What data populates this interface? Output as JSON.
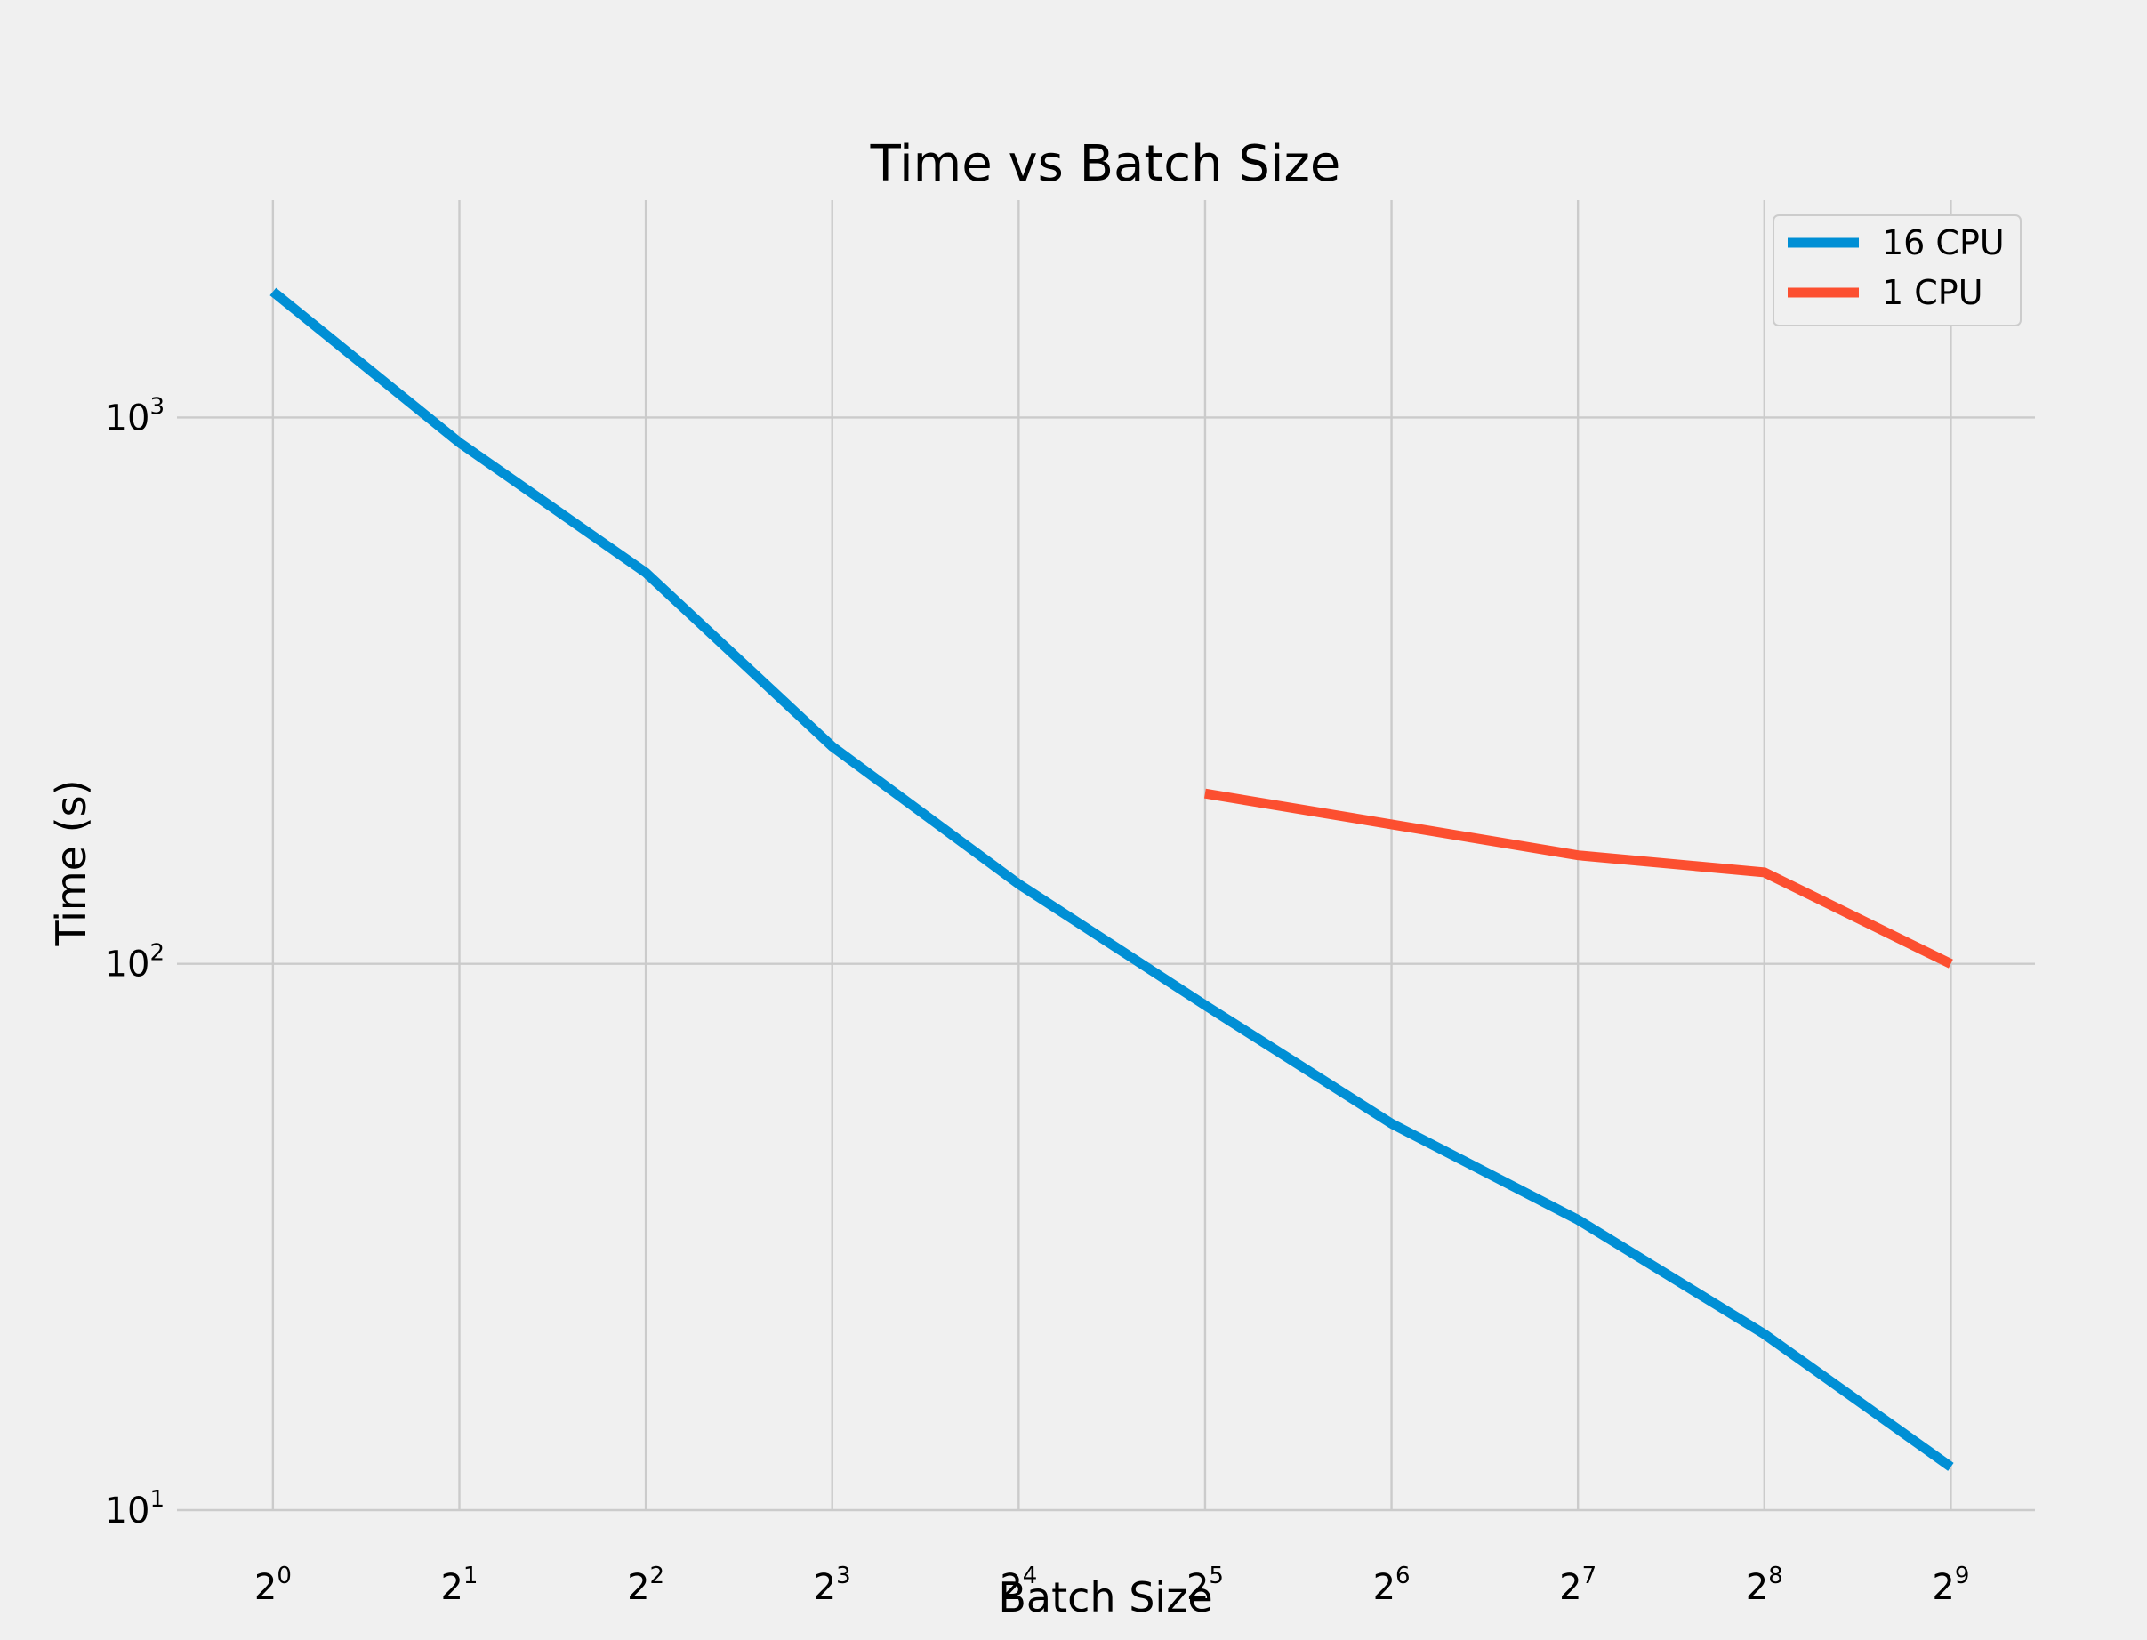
{
  "chart_data": {
    "type": "line",
    "title": "Time vs Batch Size",
    "xlabel": "Batch Size",
    "ylabel": "Time (s)",
    "x_scale": "log2",
    "y_scale": "log10",
    "x": [
      1,
      2,
      4,
      8,
      16,
      32,
      64,
      128,
      256,
      512
    ],
    "x_tick_labels": [
      {
        "base": "2",
        "exp": "0"
      },
      {
        "base": "2",
        "exp": "1"
      },
      {
        "base": "2",
        "exp": "2"
      },
      {
        "base": "2",
        "exp": "3"
      },
      {
        "base": "2",
        "exp": "4"
      },
      {
        "base": "2",
        "exp": "5"
      },
      {
        "base": "2",
        "exp": "6"
      },
      {
        "base": "2",
        "exp": "7"
      },
      {
        "base": "2",
        "exp": "8"
      },
      {
        "base": "2",
        "exp": "9"
      }
    ],
    "y_ticks": [
      10,
      100,
      1000
    ],
    "y_tick_labels": [
      {
        "base": "10",
        "exp": "1"
      },
      {
        "base": "10",
        "exp": "2"
      },
      {
        "base": "10",
        "exp": "3"
      }
    ],
    "xlim": [
      0.7,
      700
    ],
    "ylim": [
      10,
      2500
    ],
    "grid": true,
    "legend_position": "top-right",
    "series": [
      {
        "name": "16 CPU",
        "color": "#008fd5",
        "x": [
          1,
          2,
          4,
          8,
          16,
          32,
          64,
          128,
          256,
          512
        ],
        "values": [
          1700,
          900,
          520,
          250,
          140,
          84,
          51,
          34,
          21,
          12
        ]
      },
      {
        "name": "1 CPU",
        "color": "#fc4f30",
        "x": [
          32,
          64,
          128,
          256,
          512
        ],
        "values": [
          205,
          180,
          158,
          147,
          100
        ]
      }
    ]
  }
}
